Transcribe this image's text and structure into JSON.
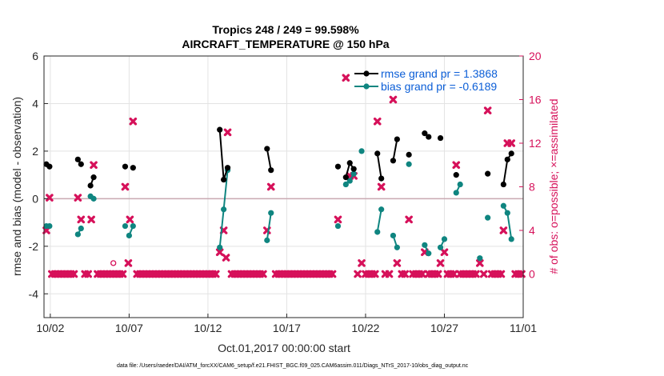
{
  "chart_data": {
    "type": "line",
    "title": "Tropics 248 / 249 = 99.598%",
    "subtitle": "AIRCRAFT_TEMPERATURE @ 150 hPa",
    "xlabel": "Oct.01,2017 00:00:00 start",
    "ylabel_left": "rmse and bias (model - observation)",
    "ylabel_right": "# of obs: o=possible; ×=assimilated",
    "xlim": [
      0.6,
      31.0
    ],
    "ylim_left": [
      -5,
      6
    ],
    "ylim_right": [
      -4,
      20
    ],
    "x_ticks": [
      {
        "v": 1.0,
        "label": "10/02"
      },
      {
        "v": 6.0,
        "label": "10/07"
      },
      {
        "v": 11.0,
        "label": "10/12"
      },
      {
        "v": 16.0,
        "label": "10/17"
      },
      {
        "v": 21.0,
        "label": "10/22"
      },
      {
        "v": 26.0,
        "label": "10/27"
      },
      {
        "v": 31.0,
        "label": "11/01"
      }
    ],
    "y_ticks_left": [
      -4,
      -2,
      0,
      2,
      4,
      6
    ],
    "y_ticks_right": [
      0,
      4,
      8,
      12,
      16,
      20
    ],
    "grid": true,
    "legend": {
      "position": "top-right",
      "entries": [
        "rmse grand pr = 1.3868",
        "bias grand pr = -0.6189"
      ]
    },
    "colors": {
      "rmse": "#000000",
      "bias": "#0f8580",
      "obs": "#d6115a",
      "zero_line": "#c9a9b2",
      "grid": "#e3e3e3"
    },
    "rmse_segments": [
      [
        [
          0.75,
          1.45
        ],
        [
          0.95,
          1.35
        ]
      ],
      [
        [
          2.75,
          1.65
        ],
        [
          2.95,
          1.45
        ]
      ],
      [
        [
          3.55,
          0.55
        ],
        [
          3.75,
          0.9
        ]
      ],
      [
        [
          5.75,
          1.35
        ]
      ],
      [
        [
          6.25,
          1.3
        ]
      ],
      [
        [
          11.75,
          2.9
        ],
        [
          12.0,
          0.8
        ],
        [
          12.25,
          1.3
        ]
      ],
      [
        [
          14.75,
          2.1
        ],
        [
          15.0,
          1.2
        ]
      ],
      [
        [
          19.25,
          1.35
        ]
      ],
      [
        [
          19.75,
          0.9
        ],
        [
          20.0,
          1.5
        ],
        [
          20.25,
          1.25
        ]
      ],
      [
        [
          21.75,
          1.9
        ],
        [
          22.0,
          0.85
        ]
      ],
      [
        [
          22.75,
          1.6
        ],
        [
          23.0,
          2.5
        ]
      ],
      [
        [
          23.75,
          1.85
        ]
      ],
      [
        [
          24.75,
          2.75
        ],
        [
          25.0,
          2.6
        ]
      ],
      [
        [
          25.75,
          2.55
        ]
      ],
      [
        [
          26.75,
          1.0
        ]
      ],
      [
        [
          28.75,
          1.05
        ]
      ],
      [
        [
          29.75,
          0.6
        ],
        [
          30.0,
          1.65
        ],
        [
          30.25,
          1.9
        ]
      ]
    ],
    "bias_segments": [
      [
        [
          0.75,
          -1.15
        ],
        [
          0.95,
          -1.15
        ]
      ],
      [
        [
          2.75,
          -1.5
        ],
        [
          2.95,
          -1.25
        ]
      ],
      [
        [
          3.55,
          0.1
        ],
        [
          3.75,
          0.0
        ]
      ],
      [
        [
          5.75,
          -1.15
        ]
      ],
      [
        [
          6.0,
          -1.55
        ],
        [
          6.25,
          -1.15
        ]
      ],
      [
        [
          11.75,
          -2.05
        ],
        [
          12.0,
          -0.45
        ],
        [
          12.25,
          1.2
        ]
      ],
      [
        [
          14.75,
          -1.75
        ],
        [
          15.0,
          -0.6
        ]
      ],
      [
        [
          19.25,
          -1.15
        ]
      ],
      [
        [
          19.75,
          0.6
        ],
        [
          20.0,
          0.75
        ],
        [
          20.25,
          1.05
        ]
      ],
      [
        [
          20.75,
          2.0
        ]
      ],
      [
        [
          21.75,
          -1.4
        ],
        [
          22.0,
          -0.45
        ]
      ],
      [
        [
          22.75,
          -1.55
        ],
        [
          23.0,
          -2.05
        ]
      ],
      [
        [
          23.75,
          1.45
        ]
      ],
      [
        [
          24.75,
          -1.95
        ],
        [
          25.0,
          -2.3
        ]
      ],
      [
        [
          25.75,
          -2.05
        ],
        [
          26.0,
          -1.7
        ]
      ],
      [
        [
          26.75,
          0.25
        ],
        [
          27.0,
          0.6
        ]
      ],
      [
        [
          28.25,
          -2.5
        ]
      ],
      [
        [
          28.75,
          -0.8
        ]
      ],
      [
        [
          29.75,
          -0.3
        ],
        [
          30.0,
          -0.6
        ],
        [
          30.25,
          -1.7
        ]
      ]
    ],
    "obs_assimilated": [
      [
        0.75,
        4
      ],
      [
        0.95,
        7
      ],
      [
        1.1,
        0
      ],
      [
        1.3,
        0
      ],
      [
        1.5,
        0
      ],
      [
        1.7,
        0
      ],
      [
        1.9,
        0
      ],
      [
        2.1,
        0
      ],
      [
        2.3,
        0
      ],
      [
        2.5,
        0
      ],
      [
        2.75,
        7
      ],
      [
        2.95,
        5
      ],
      [
        3.2,
        0
      ],
      [
        3.4,
        0
      ],
      [
        3.6,
        5
      ],
      [
        3.75,
        10
      ],
      [
        4.0,
        0
      ],
      [
        4.2,
        0
      ],
      [
        4.4,
        0
      ],
      [
        4.6,
        0
      ],
      [
        4.8,
        0
      ],
      [
        5.0,
        0
      ],
      [
        5.2,
        0
      ],
      [
        5.4,
        0
      ],
      [
        5.6,
        0
      ],
      [
        5.75,
        8
      ],
      [
        5.95,
        1
      ],
      [
        6.05,
        5
      ],
      [
        6.25,
        14
      ],
      [
        6.5,
        0
      ],
      [
        6.7,
        0
      ],
      [
        6.9,
        0
      ],
      [
        7.1,
        0
      ],
      [
        7.3,
        0
      ],
      [
        7.5,
        0
      ],
      [
        7.7,
        0
      ],
      [
        7.9,
        0
      ],
      [
        8.1,
        0
      ],
      [
        8.3,
        0
      ],
      [
        8.5,
        0
      ],
      [
        8.7,
        0
      ],
      [
        8.9,
        0
      ],
      [
        9.1,
        0
      ],
      [
        9.3,
        0
      ],
      [
        9.5,
        0
      ],
      [
        9.7,
        0
      ],
      [
        9.9,
        0
      ],
      [
        10.1,
        0
      ],
      [
        10.3,
        0
      ],
      [
        10.5,
        0
      ],
      [
        10.7,
        0
      ],
      [
        10.9,
        0
      ],
      [
        11.1,
        0
      ],
      [
        11.3,
        0
      ],
      [
        11.5,
        0
      ],
      [
        11.75,
        2
      ],
      [
        12.0,
        4
      ],
      [
        12.15,
        1.5
      ],
      [
        12.25,
        13
      ],
      [
        12.5,
        0
      ],
      [
        12.7,
        0
      ],
      [
        12.9,
        0
      ],
      [
        13.1,
        0
      ],
      [
        13.3,
        0
      ],
      [
        13.5,
        0
      ],
      [
        13.7,
        0
      ],
      [
        13.9,
        0
      ],
      [
        14.1,
        0
      ],
      [
        14.3,
        0
      ],
      [
        14.5,
        0
      ],
      [
        14.75,
        4
      ],
      [
        15.0,
        8
      ],
      [
        15.3,
        0
      ],
      [
        15.5,
        0
      ],
      [
        15.7,
        0
      ],
      [
        15.9,
        0
      ],
      [
        16.1,
        0
      ],
      [
        16.3,
        0
      ],
      [
        16.5,
        0
      ],
      [
        16.7,
        0
      ],
      [
        16.9,
        0
      ],
      [
        17.1,
        0
      ],
      [
        17.3,
        0
      ],
      [
        17.5,
        0
      ],
      [
        17.7,
        0
      ],
      [
        17.9,
        0
      ],
      [
        18.1,
        0
      ],
      [
        18.3,
        0
      ],
      [
        18.5,
        0
      ],
      [
        18.7,
        0
      ],
      [
        18.9,
        0
      ],
      [
        19.25,
        5
      ],
      [
        19.75,
        18
      ],
      [
        20.0,
        9
      ],
      [
        20.25,
        9
      ],
      [
        20.5,
        0
      ],
      [
        20.75,
        1
      ],
      [
        21.0,
        0
      ],
      [
        21.2,
        0
      ],
      [
        21.4,
        0
      ],
      [
        21.6,
        0
      ],
      [
        21.75,
        14
      ],
      [
        22.0,
        8
      ],
      [
        22.25,
        0
      ],
      [
        22.5,
        0
      ],
      [
        22.75,
        16
      ],
      [
        23.0,
        1
      ],
      [
        23.3,
        0
      ],
      [
        23.5,
        0
      ],
      [
        23.75,
        5
      ],
      [
        24.0,
        0
      ],
      [
        24.2,
        0
      ],
      [
        24.4,
        0
      ],
      [
        24.6,
        0
      ],
      [
        24.75,
        2
      ],
      [
        25.0,
        0
      ],
      [
        25.2,
        0
      ],
      [
        25.4,
        0
      ],
      [
        25.6,
        0
      ],
      [
        25.75,
        1
      ],
      [
        26.0,
        2
      ],
      [
        26.2,
        0
      ],
      [
        26.4,
        0
      ],
      [
        26.6,
        0
      ],
      [
        26.75,
        10
      ],
      [
        27.0,
        0
      ],
      [
        27.2,
        0
      ],
      [
        27.4,
        0
      ],
      [
        27.6,
        0
      ],
      [
        27.8,
        0
      ],
      [
        28.0,
        0
      ],
      [
        28.25,
        1
      ],
      [
        28.5,
        0
      ],
      [
        28.75,
        15
      ],
      [
        29.0,
        0
      ],
      [
        29.2,
        0
      ],
      [
        29.4,
        0
      ],
      [
        29.6,
        0
      ],
      [
        29.75,
        4
      ],
      [
        30.0,
        12
      ],
      [
        30.25,
        12
      ],
      [
        30.5,
        0
      ],
      [
        30.7,
        0
      ],
      [
        30.9,
        0
      ]
    ],
    "obs_possible": [
      [
        5.0,
        1
      ]
    ]
  },
  "footer": "data file: /Users/raeder/DAI/ATM_forcXX/CAM6_setup/f.e21.FHIST_BGC.f09_025.CAM6assim.011/Diags_NTrS_2017-10/obs_diag_output.nc"
}
